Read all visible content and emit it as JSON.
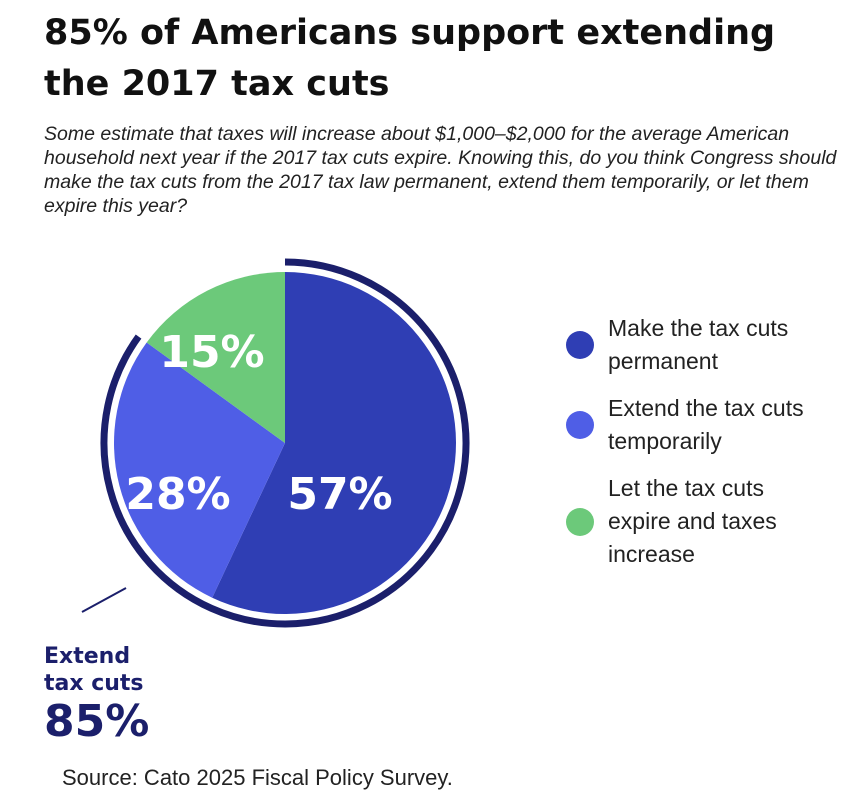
{
  "chart_data": {
    "type": "pie",
    "title": "85% of Americans support extending the 2017 tax cuts",
    "subtitle": "Some estimate that taxes will increase about $1,000–$2,000 for the average American household next year if the 2017 tax cuts expire. Knowing this, do you think Congress should make the tax cuts from the 2017 tax law permanent, extend them temporarily, or let them expire this year?",
    "slices": [
      {
        "label": "Make the tax cuts permanent",
        "value": 57,
        "value_label": "57%",
        "color": "#2f3eb4"
      },
      {
        "label": "Extend the tax cuts temporarily",
        "value": 28,
        "value_label": "28%",
        "color": "#4f5ee6"
      },
      {
        "label": "Let the tax cuts expire and taxes increase",
        "value": 15,
        "value_label": "15%",
        "color": "#6cc97a"
      }
    ],
    "legend_position": "right",
    "annotation": {
      "label": "Extend tax cuts",
      "value": "85%",
      "color": "#1b1f6b"
    },
    "source": "Source: Cato 2025 Fiscal Policy Survey."
  }
}
